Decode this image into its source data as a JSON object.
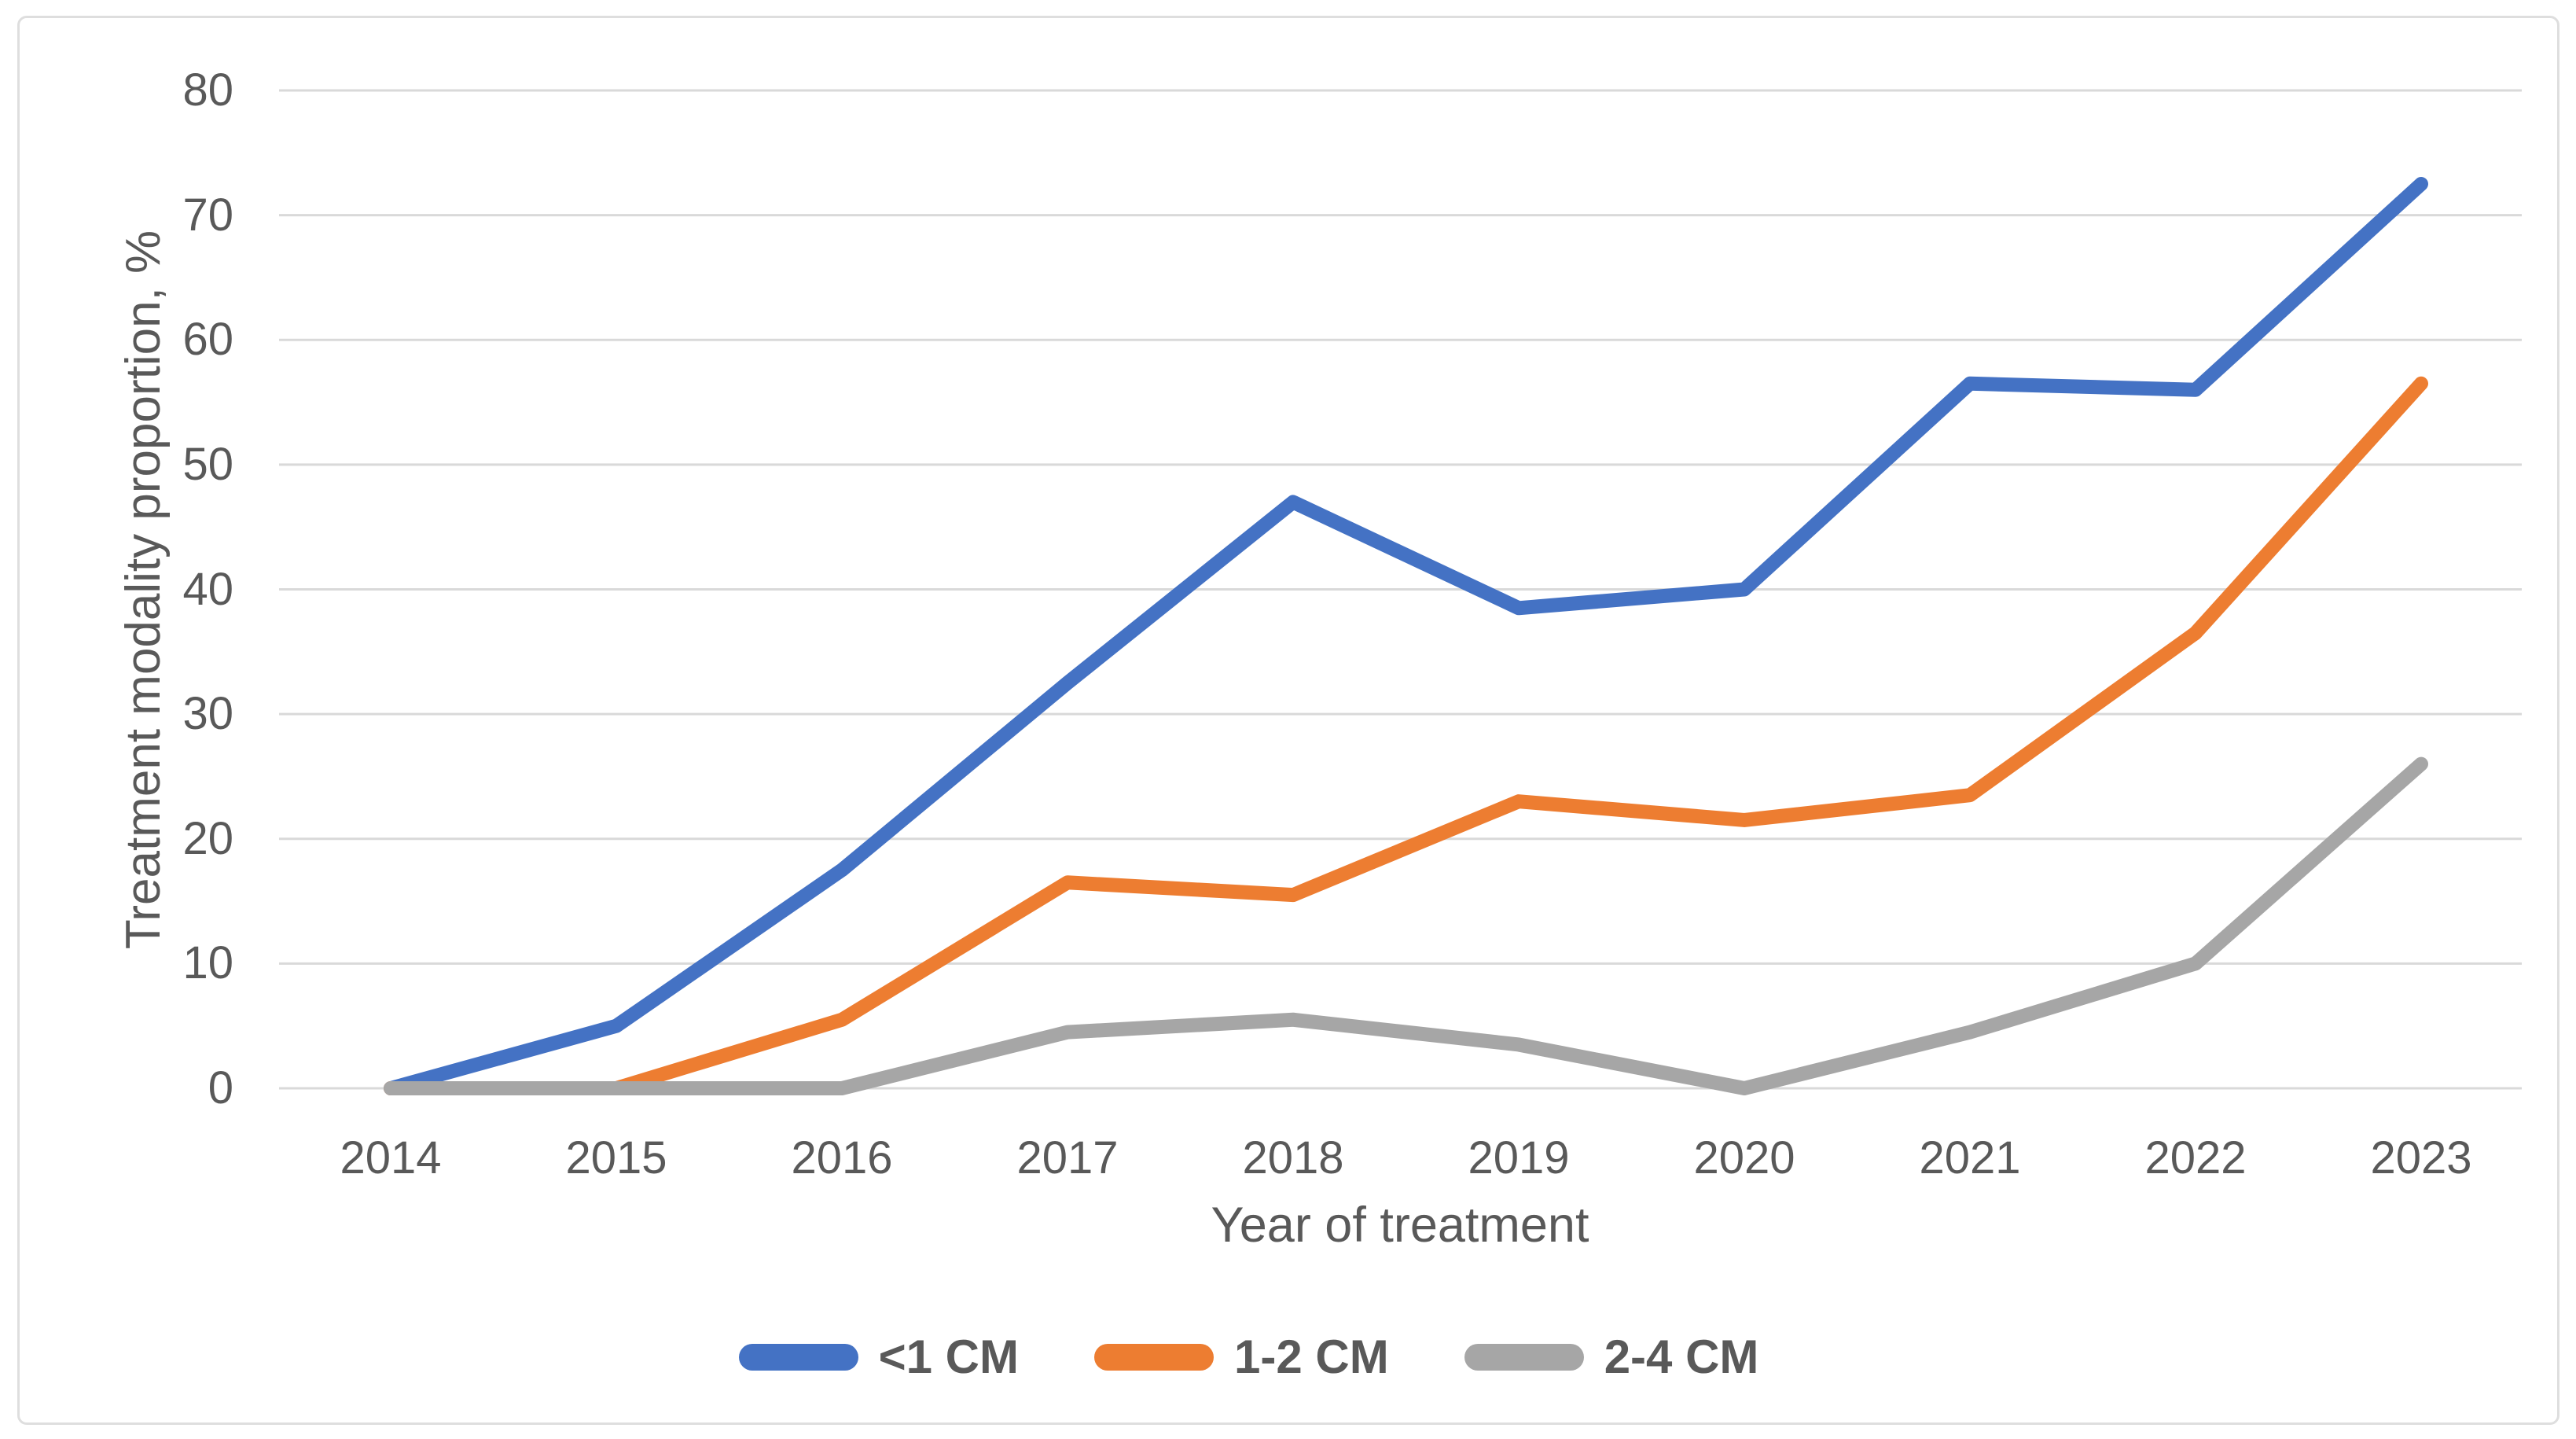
{
  "figure": {
    "background": "#ffffff",
    "border_color": "#dedede",
    "gridline_color": "#d9d9d9",
    "text_color": "#595959"
  },
  "chart_data": {
    "type": "line",
    "title": "",
    "x": [
      "2014",
      "2015",
      "2016",
      "2017",
      "2018",
      "2019",
      "2020",
      "2021",
      "2022",
      "2023"
    ],
    "xlabel": "Year of treatment",
    "ylabel": "Treatment modality proportion, %",
    "ylim": [
      0,
      80
    ],
    "yticks": [
      0,
      10,
      20,
      30,
      40,
      50,
      60,
      70,
      80
    ],
    "grid": "horizontal",
    "legend_position": "bottom",
    "series": [
      {
        "name": "<1 CM",
        "color": "#4472C4",
        "values": [
          0,
          5,
          17.5,
          32.5,
          47,
          38.5,
          40,
          56.5,
          56,
          72.5
        ]
      },
      {
        "name": "1-2 CM",
        "color": "#ED7D31",
        "values": [
          0,
          0,
          5.5,
          16.5,
          15.5,
          23,
          21.5,
          23.5,
          36.5,
          56.5
        ]
      },
      {
        "name": "2-4 CM",
        "color": "#A6A6A6",
        "values": [
          0,
          0,
          0,
          4.5,
          5.5,
          3.5,
          0,
          4.5,
          10,
          26
        ]
      }
    ]
  }
}
